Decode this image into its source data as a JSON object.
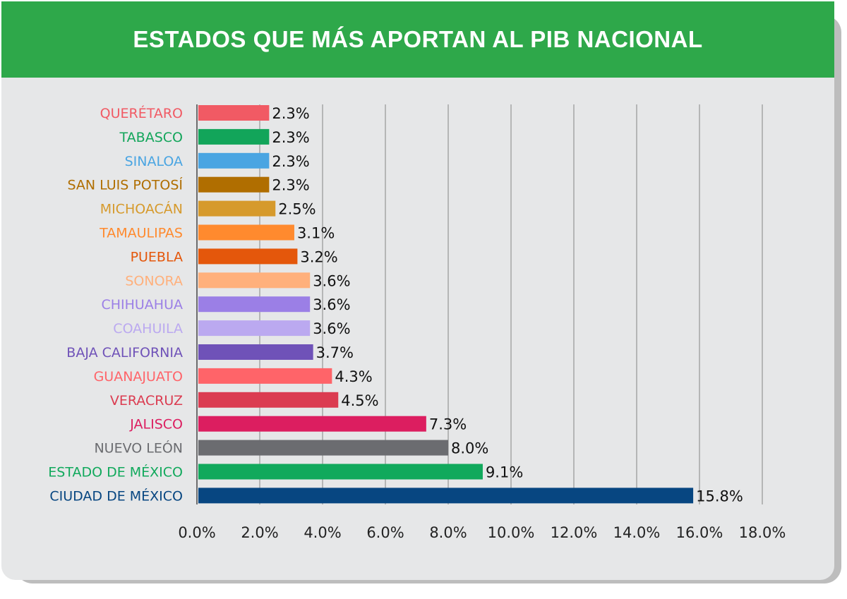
{
  "header": {
    "title": "ESTADOS QUE MÁS APORTAN AL PIB NACIONAL"
  },
  "chart_data": {
    "type": "bar",
    "orientation": "horizontal",
    "title": "ESTADOS QUE MÁS APORTAN AL PIB NACIONAL",
    "categories": [
      "QUERÉTARO",
      "TABASCO",
      "SINALOA",
      "SAN LUIS POTOSÍ",
      "MICHOACÁN",
      "TAMAULIPAS",
      "PUEBLA",
      "SONORA",
      "CHIHUAHUA",
      "COAHUILA",
      "BAJA CALIFORNIA",
      "GUANAJUATO",
      "VERACRUZ",
      "JALISCO",
      "NUEVO LEÓN",
      "ESTADO DE MÉXICO",
      "CIUDAD DE MÉXICO"
    ],
    "values": [
      2.3,
      2.3,
      2.3,
      2.3,
      2.5,
      3.1,
      3.2,
      3.6,
      3.6,
      3.6,
      3.7,
      4.3,
      4.5,
      7.3,
      8.0,
      9.1,
      15.8
    ],
    "value_labels": [
      "2.3%",
      "2.3%",
      "2.3%",
      "2.3%",
      "2.5%",
      "3.1%",
      "3.2%",
      "3.6%",
      "3.6%",
      "3.6%",
      "3.7%",
      "4.3%",
      "4.5%",
      "7.3%",
      "8.0%",
      "9.1%",
      "15.8%"
    ],
    "colors": [
      "#f15a64",
      "#12a55a",
      "#4aa5e2",
      "#b06e00",
      "#d69a2c",
      "#ff8a2e",
      "#e4570b",
      "#ffb07c",
      "#9b7fe6",
      "#bba9f0",
      "#6f52b8",
      "#ff6469",
      "#db3c51",
      "#dc1e60",
      "#6b6c70",
      "#11a95c",
      "#074681"
    ],
    "xlim": [
      0,
      18
    ],
    "xticks": [
      "0.0%",
      "2.0%",
      "4.0%",
      "6.0%",
      "8.0%",
      "10.0%",
      "12.0%",
      "14.0%",
      "16.0%",
      "18.0%"
    ],
    "grid": "vertical",
    "xlabel": "",
    "ylabel": ""
  }
}
